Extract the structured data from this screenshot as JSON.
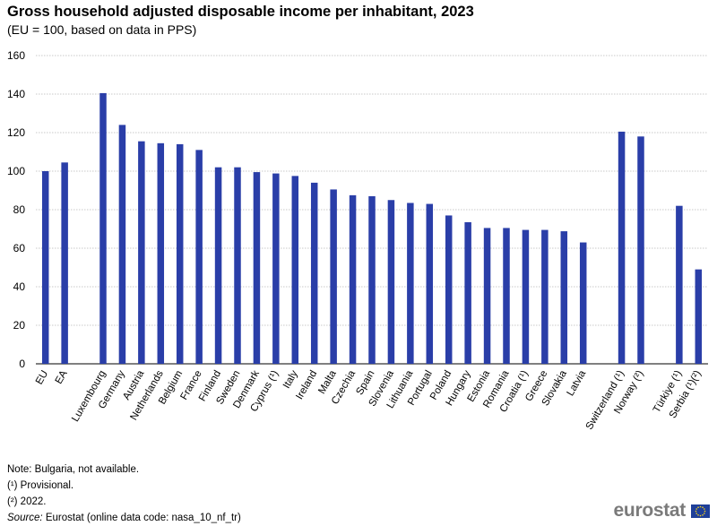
{
  "chart_data": {
    "type": "bar",
    "title": "Gross household adjusted disposable income per inhabitant, 2023",
    "subtitle": "(EU = 100, based on data in PPS)",
    "xlabel": "",
    "ylabel": "",
    "ylim": [
      0,
      160
    ],
    "yticks": [
      0,
      20,
      40,
      60,
      80,
      100,
      120,
      140,
      160
    ],
    "grid": true,
    "bar_color": "#2a3ea8",
    "gap_after": [
      "EA",
      "Latvia",
      "Norway (²)"
    ],
    "categories": [
      "EU",
      "EA",
      "Luxembourg",
      "Germany",
      "Austria",
      "Netherlands",
      "Belgium",
      "France",
      "Finland",
      "Sweden",
      "Denmark",
      "Cyprus (¹)",
      "Italy",
      "Ireland",
      "Malta",
      "Czechia",
      "Spain",
      "Slovenia",
      "Lithuania",
      "Portugal",
      "Poland",
      "Hungary",
      "Estonia",
      "Romania",
      "Croatia (¹)",
      "Greece",
      "Slovakia",
      "Latvia",
      "Switzerland (¹)",
      "Norway (²)",
      "Türkiye (¹)",
      "Serbia (¹)(²)"
    ],
    "values": [
      100,
      104.5,
      140.5,
      124,
      115.5,
      114.5,
      114,
      111,
      102,
      102,
      99.5,
      98.8,
      97.5,
      94,
      90.5,
      87.5,
      87,
      85,
      83.5,
      83,
      77,
      73.5,
      70.5,
      70.5,
      69.5,
      69.5,
      68.8,
      63,
      120.5,
      118,
      82,
      49
    ]
  },
  "notes": {
    "note": "Note: Bulgaria, not available.",
    "footnote1": "(¹) Provisional.",
    "footnote2": "(²) 2022.",
    "source_label": "Source:",
    "source_text": " Eurostat (online data code: nasa_10_nf_tr)"
  },
  "logo": {
    "text": "eurostat",
    "icon": "eu-flag-icon"
  }
}
